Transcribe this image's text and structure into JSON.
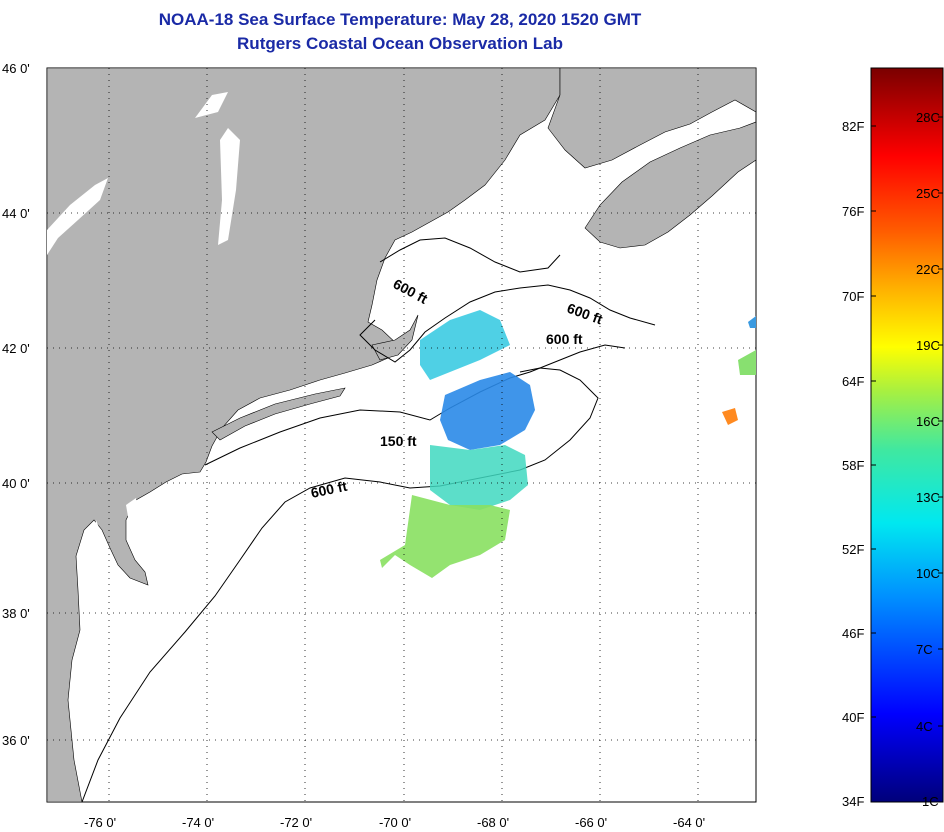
{
  "header": {
    "title": "NOAA-18 Sea Surface Temperature:  May 28, 2020 1520 GMT",
    "subtitle": "Rutgers Coastal Ocean Observation Lab"
  },
  "map": {
    "lat_labels": [
      "46 0'",
      "44 0'",
      "42 0'",
      "40 0'",
      "38 0'",
      "36 0'"
    ],
    "lon_labels": [
      "-76 0'",
      "-74 0'",
      "-72 0'",
      "-70 0'",
      "-68 0'",
      "-66 0'",
      "-64 0'"
    ],
    "contour_labels": [
      "600 ft",
      "600 ft",
      "600 ft",
      "150 ft",
      "600 ft"
    ],
    "colors": {
      "land": "#b4b4b4",
      "ocean": "#ffffff",
      "frame": "#000000"
    }
  },
  "colorbar": {
    "fahrenheit": [
      "82F",
      "76F",
      "70F",
      "64F",
      "58F",
      "52F",
      "46F",
      "40F",
      "34F"
    ],
    "celsius": [
      "28C",
      "25C",
      "22C",
      "19C",
      "16C",
      "13C",
      "10C",
      "7C",
      "4C",
      "1C"
    ]
  }
}
